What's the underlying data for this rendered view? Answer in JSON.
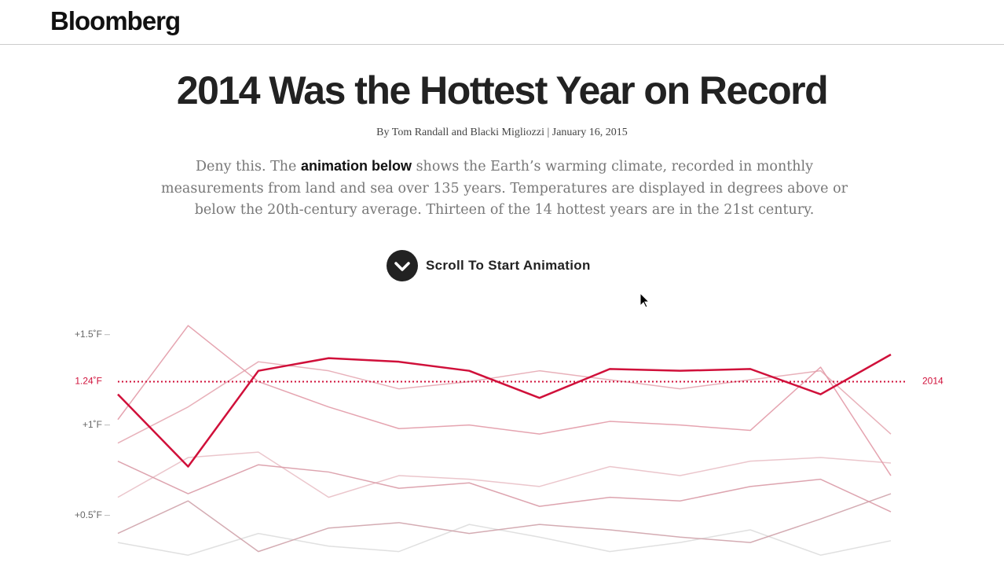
{
  "header": {
    "logo": "Bloomberg"
  },
  "article": {
    "title": "2014 Was the Hottest Year on Record",
    "byline": "By Tom Randall and Blacki Migliozzi | January 16, 2015",
    "intro": {
      "before": "Deny this. The",
      "bold": "animation below",
      "after": "shows the Earth’s warming climate, recorded in monthly measurements from land and sea over 135 years. Temperatures are displayed in degrees above or below the 20th-century average. Thirteen of the 14 hottest years are in the 21st century."
    },
    "button": "Scroll To Start Animation"
  },
  "chart_data": {
    "type": "line",
    "categories": [
      null,
      null,
      null,
      null,
      null,
      null,
      null,
      null,
      null,
      null,
      null,
      null
    ],
    "ylim": [
      0.22,
      1.59
    ],
    "yticks": [
      {
        "value": 0.5,
        "label": "+0.5˚F"
      },
      {
        "value": 1,
        "label": "+1˚F"
      },
      {
        "value": 1.5,
        "label": "+1.5˚F"
      }
    ],
    "reference": {
      "value": 1.24,
      "label": "1.24˚F",
      "color": "#d0103a"
    },
    "series": [
      {
        "color": "#dddddd",
        "values": [
          0.35,
          0.28,
          0.4,
          0.33,
          0.3,
          0.45,
          0.38,
          0.3,
          0.35,
          0.42,
          0.28,
          0.36
        ]
      },
      {
        "color": "#e9c0c7",
        "values": [
          0.6,
          0.82,
          0.85,
          0.6,
          0.72,
          0.7,
          0.66,
          0.77,
          0.72,
          0.8,
          0.82,
          0.79
        ]
      },
      {
        "color": "#cfa3ab",
        "values": [
          0.4,
          0.58,
          0.3,
          0.43,
          0.46,
          0.4,
          0.45,
          0.42,
          0.38,
          0.35,
          0.48,
          0.62
        ]
      },
      {
        "color": "#d99aa6",
        "values": [
          0.8,
          0.62,
          0.78,
          0.74,
          0.65,
          0.68,
          0.55,
          0.6,
          0.58,
          0.66,
          0.7,
          0.52
        ]
      },
      {
        "color": "#e6a8b3",
        "values": [
          0.9,
          1.1,
          1.35,
          1.3,
          1.2,
          1.24,
          1.3,
          1.25,
          1.2,
          1.25,
          1.3,
          0.95
        ]
      },
      {
        "color": "#e29aa7",
        "values": [
          1.03,
          1.55,
          1.24,
          1.1,
          0.98,
          1.0,
          0.95,
          1.02,
          1.0,
          0.97,
          1.32,
          0.72
        ]
      },
      {
        "name": "2014",
        "color": "#d0103a",
        "values": [
          1.17,
          0.77,
          1.3,
          1.37,
          1.35,
          1.3,
          1.15,
          1.31,
          1.3,
          1.31,
          1.17,
          1.39
        ]
      }
    ]
  }
}
